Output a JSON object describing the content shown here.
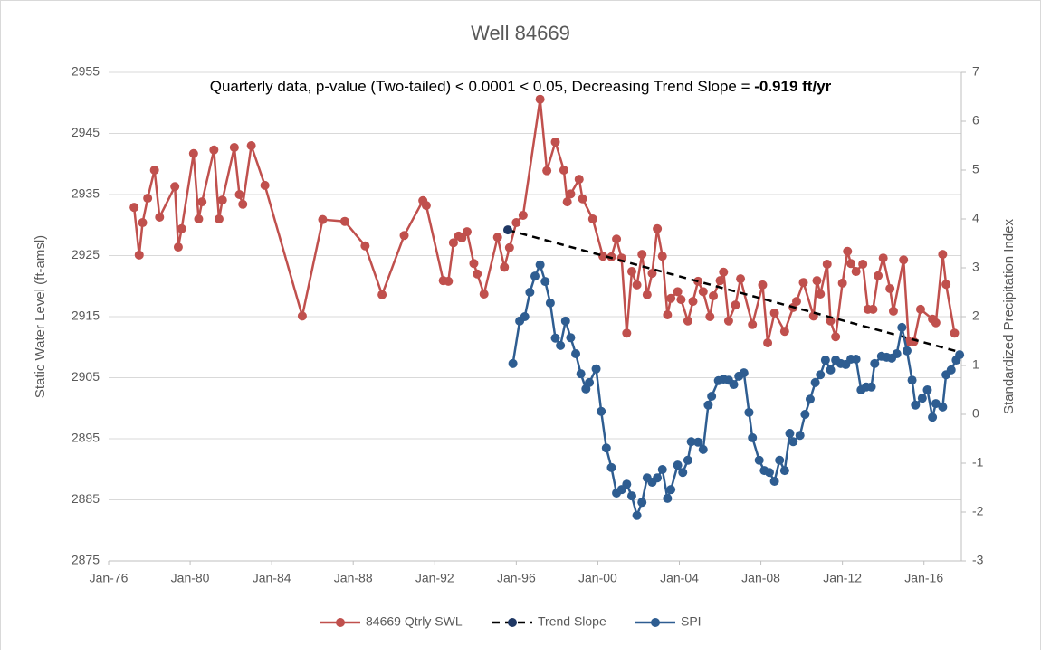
{
  "chart_data": {
    "type": "line",
    "title": "Well 84669",
    "annotation": [
      "Quarterly data, p-value (Two-tailed) < 0.0001 < 0.05, Decreasing Trend Slope = ",
      "-0.919 ft/yr"
    ],
    "ylabel": "Static Water Level (ft-amsl)",
    "y2label": "Standardized Precipitation Index",
    "xlim": [
      "1976-01",
      "2017-11"
    ],
    "xticks": [
      {
        "value": "1976-01",
        "label": "Jan-76"
      },
      {
        "value": "1980-01",
        "label": "Jan-80"
      },
      {
        "value": "1984-01",
        "label": "Jan-84"
      },
      {
        "value": "1988-01",
        "label": "Jan-88"
      },
      {
        "value": "1992-01",
        "label": "Jan-92"
      },
      {
        "value": "1996-01",
        "label": "Jan-96"
      },
      {
        "value": "2000-01",
        "label": "Jan-00"
      },
      {
        "value": "2004-01",
        "label": "Jan-04"
      },
      {
        "value": "2008-01",
        "label": "Jan-08"
      },
      {
        "value": "2012-01",
        "label": "Jan-12"
      },
      {
        "value": "2016-01",
        "label": "Jan-16"
      }
    ],
    "ylim": [
      2875,
      2955
    ],
    "yticks": [
      2875,
      2885,
      2895,
      2905,
      2915,
      2925,
      2935,
      2945,
      2955
    ],
    "y2lim": [
      -3,
      7
    ],
    "y2ticks": [
      -3,
      -2,
      -1,
      0,
      1,
      2,
      3,
      4,
      5,
      6,
      7
    ],
    "grid": true,
    "legend": "bottom",
    "series": [
      {
        "name": "84669 Qtrly SWL",
        "color": "#c0504d",
        "axis": "y",
        "line_style": "solid",
        "markers": "all",
        "x": [
          "1977-04",
          "1977-07",
          "1977-09",
          "1977-12",
          "1978-04",
          "1978-07",
          "1979-04",
          "1979-06",
          "1979-08",
          "1980-03",
          "1980-06",
          "1980-08",
          "1981-03",
          "1981-06",
          "1981-08",
          "1982-03",
          "1982-06",
          "1982-08",
          "1983-01",
          "1983-09",
          "1985-07",
          "1986-07",
          "1987-08",
          "1988-08",
          "1989-06",
          "1990-07",
          "1991-06",
          "1991-08",
          "1992-06",
          "1992-09",
          "1992-12",
          "1993-03",
          "1993-05",
          "1993-08",
          "1993-12",
          "1994-02",
          "1994-06",
          "1995-02",
          "1995-06",
          "1995-09",
          "1996-01",
          "1996-05",
          "1997-03",
          "1997-07",
          "1997-12",
          "1998-05",
          "1998-07",
          "1998-09",
          "1999-02",
          "1999-04",
          "1999-10",
          "2000-04",
          "2000-09",
          "2000-12",
          "2001-03",
          "2001-06",
          "2001-09",
          "2001-12",
          "2002-03",
          "2002-06",
          "2002-09",
          "2002-12",
          "2003-03",
          "2003-06",
          "2003-08",
          "2003-12",
          "2004-02",
          "2004-06",
          "2004-09",
          "2004-12",
          "2005-03",
          "2005-07",
          "2005-09",
          "2006-01",
          "2006-03",
          "2006-06",
          "2006-10",
          "2007-01",
          "2007-08",
          "2008-02",
          "2008-05",
          "2008-09",
          "2009-03",
          "2009-08",
          "2009-10",
          "2010-02",
          "2010-08",
          "2010-10",
          "2010-12",
          "2011-04",
          "2011-06",
          "2011-09",
          "2012-01",
          "2012-04",
          "2012-06",
          "2012-09",
          "2013-01",
          "2013-04",
          "2013-07",
          "2013-10",
          "2014-01",
          "2014-05",
          "2014-07",
          "2015-01",
          "2015-04",
          "2015-07",
          "2015-11",
          "2016-06",
          "2016-08",
          "2016-12",
          "2017-02",
          "2017-07"
        ],
        "values": [
          2932.9,
          2925.1,
          2930.4,
          2934.4,
          2939.0,
          2931.3,
          2936.3,
          2926.4,
          2929.4,
          2941.7,
          2931.0,
          2933.8,
          2942.3,
          2931.0,
          2934.1,
          2942.7,
          2935.0,
          2933.4,
          2943.0,
          2936.5,
          2915.1,
          2930.9,
          2930.6,
          2926.6,
          2918.6,
          2928.3,
          2934.0,
          2933.2,
          2920.9,
          2920.8,
          2927.1,
          2928.2,
          2927.9,
          2928.9,
          2923.7,
          2922.0,
          2918.7,
          2928.0,
          2923.1,
          2926.3,
          2930.4,
          2931.6,
          2950.6,
          2938.9,
          2943.6,
          2939.0,
          2933.8,
          2935.1,
          2937.5,
          2934.3,
          2931.0,
          2924.9,
          2924.8,
          2927.7,
          2924.6,
          2912.3,
          2922.4,
          2920.2,
          2925.2,
          2918.6,
          2922.1,
          2929.4,
          2924.9,
          2915.3,
          2918.0,
          2919.1,
          2917.8,
          2914.3,
          2917.5,
          2920.8,
          2919.1,
          2915.0,
          2918.4,
          2920.9,
          2922.3,
          2914.3,
          2916.9,
          2921.2,
          2913.7,
          2920.2,
          2910.7,
          2915.6,
          2912.6,
          2916.5,
          2917.5,
          2920.6,
          2915.1,
          2920.9,
          2918.7,
          2923.6,
          2914.3,
          2911.7,
          2920.5,
          2925.7,
          2923.7,
          2922.4,
          2923.6,
          2916.2,
          2916.2,
          2921.7,
          2924.6,
          2919.6,
          2915.9,
          2924.3,
          2910.9,
          2910.9,
          2916.2,
          2914.6,
          2914.0,
          2925.2,
          2920.3,
          2912.3
        ]
      },
      {
        "name": "Trend Slope",
        "color": "#000000",
        "marker_color": "#1f3864",
        "axis": "y",
        "line_style": "dashed",
        "markers": "first",
        "x": [
          "1995-08",
          "2017-10"
        ],
        "values": [
          2929.2,
          2909.2
        ]
      },
      {
        "name": "SPI",
        "color": "#2e5d91",
        "axis": "y2",
        "line_style": "solid",
        "markers": "all",
        "x": [
          "1995-11",
          "1996-03",
          "1996-06",
          "1996-09",
          "1996-12",
          "1997-03",
          "1997-06",
          "1997-09",
          "1997-12",
          "1998-03",
          "1998-06",
          "1998-09",
          "1998-12",
          "1999-03",
          "1999-06",
          "1999-08",
          "1999-12",
          "2000-03",
          "2000-06",
          "2000-09",
          "2000-12",
          "2001-03",
          "2001-06",
          "2001-09",
          "2001-12",
          "2002-03",
          "2002-06",
          "2002-09",
          "2002-12",
          "2003-03",
          "2003-06",
          "2003-08",
          "2003-12",
          "2004-03",
          "2004-06",
          "2004-08",
          "2004-12",
          "2005-03",
          "2005-06",
          "2005-08",
          "2005-12",
          "2006-03",
          "2006-06",
          "2006-09",
          "2006-12",
          "2007-03",
          "2007-06",
          "2007-08",
          "2007-12",
          "2008-03",
          "2008-06",
          "2008-09",
          "2008-12",
          "2009-03",
          "2009-06",
          "2009-08",
          "2009-12",
          "2010-03",
          "2010-06",
          "2010-09",
          "2010-12",
          "2011-03",
          "2011-06",
          "2011-09",
          "2011-12",
          "2012-03",
          "2012-06",
          "2012-09",
          "2012-12",
          "2013-03",
          "2013-06",
          "2013-08",
          "2013-12",
          "2014-03",
          "2014-06",
          "2014-09",
          "2014-12",
          "2015-03",
          "2015-06",
          "2015-08",
          "2015-12",
          "2016-03",
          "2016-06",
          "2016-08",
          "2016-12",
          "2017-02",
          "2017-05",
          "2017-08",
          "2017-10"
        ],
        "values": [
          1.04,
          1.91,
          2.0,
          2.5,
          2.83,
          3.06,
          2.72,
          2.28,
          1.56,
          1.41,
          1.91,
          1.57,
          1.24,
          0.83,
          0.52,
          0.65,
          0.93,
          0.06,
          -0.69,
          -1.09,
          -1.61,
          -1.54,
          -1.43,
          -1.67,
          -2.07,
          -1.8,
          -1.3,
          -1.39,
          -1.3,
          -1.13,
          -1.72,
          -1.54,
          -1.04,
          -1.19,
          -0.94,
          -0.56,
          -0.57,
          -0.72,
          0.19,
          0.37,
          0.69,
          0.72,
          0.7,
          0.61,
          0.78,
          0.85,
          0.04,
          -0.48,
          -0.94,
          -1.15,
          -1.19,
          -1.37,
          -0.94,
          -1.15,
          -0.39,
          -0.56,
          -0.43,
          0.0,
          0.31,
          0.65,
          0.81,
          1.11,
          0.91,
          1.11,
          1.04,
          1.02,
          1.13,
          1.13,
          0.5,
          0.56,
          0.56,
          1.04,
          1.19,
          1.17,
          1.15,
          1.24,
          1.78,
          1.3,
          0.7,
          0.19,
          0.33,
          0.5,
          -0.06,
          0.22,
          0.15,
          0.81,
          0.91,
          1.11,
          1.22
        ]
      }
    ]
  }
}
